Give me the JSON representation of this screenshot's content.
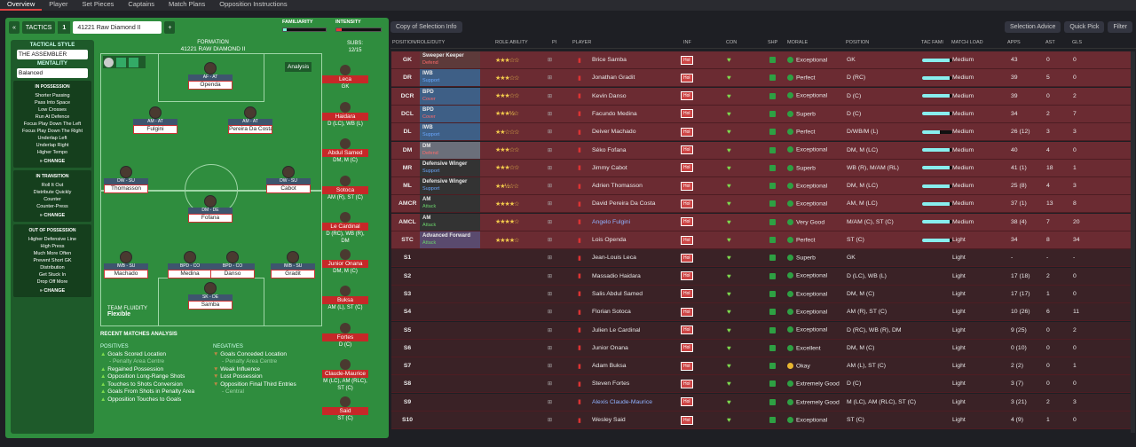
{
  "topnav": [
    "Overview",
    "Player",
    "Set Pieces",
    "Captains",
    "Match Plans",
    "Opposition Instructions"
  ],
  "tactics": {
    "label": "TACTICS",
    "slot": "1",
    "name": "41221 Raw Diamond II",
    "familiarity": "FAMILIARITY",
    "intensity": "INTENSITY",
    "formation_label": "FORMATION",
    "formation": "41221 RAW DIAMOND II",
    "subs_label": "SUBS:",
    "subs_count": "12/15",
    "analysis": "Analysis",
    "fluidity_label": "TEAM FLUIDITY",
    "fluidity": "Flexible"
  },
  "style": {
    "h": "TACTICAL STYLE",
    "name": "THE ASSEMBLER",
    "mentality_h": "MENTALITY",
    "mentality": "Balanced",
    "inpos_h": "IN POSSESSION",
    "inpos": [
      "Shorter Passing",
      "Pass Into Space",
      "Low Crosses",
      "Run At Defence",
      "Focus Play Down The Left",
      "Focus Play Down The Right",
      "Underlap Left",
      "Underlap Right",
      "Higher Tempo"
    ],
    "trans_h": "IN TRANSITION",
    "trans": [
      "Roll It Out",
      "Distribute Quickly",
      "Counter",
      "Counter-Press"
    ],
    "oop_h": "OUT OF POSSESSION",
    "oop": [
      "Higher Defensive Line",
      "High Press",
      "Much More Often",
      "Prevent Short GK",
      "Distribution",
      "Get Stuck In",
      "Drop Off More"
    ],
    "change": "CHANGE"
  },
  "pitch_players": [
    {
      "pos": "AF - AT",
      "name": "Openda"
    },
    {
      "pos": "AM - AT",
      "name": "Fulgini"
    },
    {
      "pos": "AM - AT",
      "name": "Pereira Da Costa"
    },
    {
      "pos": "DW - SU",
      "name": "Thomasson"
    },
    {
      "pos": "DW - SU",
      "name": "Cabot"
    },
    {
      "pos": "DM - DE",
      "name": "Fofana"
    },
    {
      "pos": "IWB - SU",
      "name": "Machado"
    },
    {
      "pos": "BPD - CO",
      "name": "Medina"
    },
    {
      "pos": "BPD - CO",
      "name": "Danso"
    },
    {
      "pos": "IWB - SU",
      "name": "Gradit"
    },
    {
      "pos": "SK - DE",
      "name": "Samba"
    }
  ],
  "subs": [
    {
      "name": "Leca",
      "pos": "GK"
    },
    {
      "name": "Haidara",
      "pos": "D (LC), WB (L)"
    },
    {
      "name": "Abdul Samed",
      "pos": "DM, M (C)"
    },
    {
      "name": "Sotoca",
      "pos": "AM (R), ST (C)"
    },
    {
      "name": "Le Cardinal",
      "pos": "D (RC), WB (R), DM"
    },
    {
      "name": "Junior Onana",
      "pos": "DM, M (C)"
    },
    {
      "name": "Buksa",
      "pos": "AM (L), ST (C)"
    },
    {
      "name": "Fortes",
      "pos": "D (C)"
    },
    {
      "name": "Claude-Maurice",
      "pos": "M (LC), AM (RLC), ST (C)"
    },
    {
      "name": "Said",
      "pos": "ST (C)"
    }
  ],
  "recent": {
    "title": "RECENT MATCHES ANALYSIS",
    "pos_h": "POSITIVES",
    "neg_h": "NEGATIVES",
    "pos": [
      [
        "Goals Scored Location",
        "- Penalty Area Centre"
      ],
      [
        "Regained Possession",
        ""
      ],
      [
        "Opposition Long-Range Shots",
        ""
      ],
      [
        "Touches to Shots Conversion",
        ""
      ],
      [
        "Goals From Shots in Penalty Area",
        ""
      ],
      [
        "Opposition Touches to Goals",
        ""
      ]
    ],
    "neg": [
      [
        "Goals Conceded Location",
        "- Penalty Area Centre"
      ],
      [
        "Weak Influence",
        ""
      ],
      [
        "Lost Possession",
        ""
      ],
      [
        "Opposition Final Third Entries",
        "- Central"
      ]
    ]
  },
  "toolbar": {
    "view": "Copy of Selection Info",
    "advice": "Selection Advice",
    "quick": "Quick Pick",
    "filter": "Filter"
  },
  "headers": [
    "POSITION/ROLE/DUTY",
    "ROLE ABILITY",
    "PI",
    "PLAYER",
    "INF",
    "CON",
    "SHP",
    "MORALE",
    "POSITION",
    "TAC FAMI",
    "MATCH LOAD",
    "APPS",
    "AST",
    "GLS"
  ],
  "rows": [
    {
      "code": "GK",
      "role": "Sweeper Keeper",
      "duty": "Defend",
      "stars": "★★★☆☆",
      "player": "Brice Samba",
      "morale": "Exceptional",
      "position": "GK",
      "tac": 0.9,
      "load": "Medium",
      "apps": "43",
      "ast": "0",
      "gls": "0"
    },
    {
      "code": "DR",
      "role": "IWB",
      "duty": "Support",
      "stars": "★★★☆☆",
      "player": "Jonathan Gradit",
      "morale": "Perfect",
      "position": "D (RC)",
      "tac": 0.9,
      "load": "Medium",
      "apps": "39",
      "ast": "5",
      "gls": "0"
    },
    {
      "code": "DCR",
      "role": "BPD",
      "duty": "Cover",
      "stars": "★★★☆☆",
      "player": "Kevin Danso",
      "morale": "Exceptional",
      "position": "D (C)",
      "tac": 0.9,
      "load": "Medium",
      "apps": "39",
      "ast": "0",
      "gls": "2"
    },
    {
      "code": "DCL",
      "role": "BPD",
      "duty": "Cover",
      "stars": "★★★½☆",
      "player": "Facundo Medina",
      "morale": "Superb",
      "position": "D (C)",
      "tac": 0.9,
      "load": "Medium",
      "apps": "34",
      "ast": "2",
      "gls": "7"
    },
    {
      "code": "DL",
      "role": "IWB",
      "duty": "Support",
      "stars": "★★☆☆☆",
      "player": "Deiver Machado",
      "morale": "Perfect",
      "position": "D/WB/M (L)",
      "tac": 0.6,
      "load": "Medium",
      "apps": "26 (12)",
      "ast": "3",
      "gls": "3"
    },
    {
      "code": "DM",
      "role": "DM",
      "duty": "Defend",
      "stars": "★★★☆☆",
      "player": "Séko Fofana",
      "morale": "Exceptional",
      "position": "DM, M (LC)",
      "tac": 0.9,
      "load": "Medium",
      "apps": "40",
      "ast": "4",
      "gls": "0"
    },
    {
      "code": "MR",
      "role": "Defensive Winger",
      "duty": "Support",
      "stars": "★★★☆☆",
      "player": "Jimmy Cabot",
      "morale": "Superb",
      "position": "WB (R), M/AM (RL)",
      "tac": 0.9,
      "load": "Medium",
      "apps": "41 (1)",
      "ast": "18",
      "gls": "1"
    },
    {
      "code": "ML",
      "role": "Defensive Winger",
      "duty": "Support",
      "stars": "★★½☆☆",
      "player": "Adrien Thomasson",
      "morale": "Exceptional",
      "position": "DM, M (LC)",
      "tac": 0.9,
      "load": "Medium",
      "apps": "25 (8)",
      "ast": "4",
      "gls": "3"
    },
    {
      "code": "AMCR",
      "role": "AM",
      "duty": "Attack",
      "stars": "★★★★☆",
      "player": "David Pereira Da Costa",
      "morale": "Exceptional",
      "position": "AM, M (LC)",
      "tac": 0.9,
      "load": "Medium",
      "apps": "37 (1)",
      "ast": "13",
      "gls": "8"
    },
    {
      "code": "AMCL",
      "role": "AM",
      "duty": "Attack",
      "stars": "★★★★☆",
      "player": "Angelo Fulgini",
      "morale": "Very Good",
      "position": "M/AM (C), ST (C)",
      "tac": 0.9,
      "load": "Medium",
      "apps": "38 (4)",
      "ast": "7",
      "gls": "20"
    },
    {
      "code": "STC",
      "role": "Advanced Forward",
      "duty": "Attack",
      "stars": "★★★★☆",
      "player": "Lois Openda",
      "morale": "Perfect",
      "position": "ST (C)",
      "tac": 0.9,
      "load": "Light",
      "apps": "34",
      "ast": "8",
      "gls": "34"
    },
    {
      "code": "S1",
      "player": "Jean-Louis Leca",
      "morale": "Superb",
      "position": "GK",
      "load": "Light",
      "apps": "-",
      "ast": "-",
      "gls": "-"
    },
    {
      "code": "S2",
      "player": "Massadio Haidara",
      "morale": "Exceptional",
      "position": "D (LC), WB (L)",
      "load": "Light",
      "apps": "17 (18)",
      "ast": "2",
      "gls": "0"
    },
    {
      "code": "S3",
      "player": "Salis Abdul Samed",
      "morale": "Exceptional",
      "position": "DM, M (C)",
      "load": "Light",
      "apps": "17 (17)",
      "ast": "1",
      "gls": "0"
    },
    {
      "code": "S4",
      "player": "Florian Sotoca",
      "morale": "Exceptional",
      "position": "AM (R), ST (C)",
      "load": "Light",
      "apps": "10 (26)",
      "ast": "6",
      "gls": "11"
    },
    {
      "code": "S5",
      "player": "Julien Le Cardinal",
      "morale": "Exceptional",
      "position": "D (RC), WB (R), DM",
      "load": "Light",
      "apps": "9 (25)",
      "ast": "0",
      "gls": "2"
    },
    {
      "code": "S6",
      "player": "Junior Onana",
      "morale": "Excellent",
      "position": "DM, M (C)",
      "load": "Light",
      "apps": "0 (10)",
      "ast": "0",
      "gls": "0"
    },
    {
      "code": "S7",
      "player": "Adam Buksa",
      "morale": "Okay",
      "position": "AM (L), ST (C)",
      "load": "Light",
      "apps": "2 (2)",
      "ast": "0",
      "gls": "1"
    },
    {
      "code": "S8",
      "player": "Steven Fortes",
      "morale": "Extremely Good",
      "position": "D (C)",
      "load": "Light",
      "apps": "3 (7)",
      "ast": "0",
      "gls": "0"
    },
    {
      "code": "S9",
      "player": "Alexis Claude-Maurice",
      "morale": "Extremely Good",
      "position": "M (LC), AM (RLC), ST (C)",
      "load": "Light",
      "apps": "3 (21)",
      "ast": "2",
      "gls": "3"
    },
    {
      "code": "S10",
      "player": "Wesley Said",
      "morale": "Exceptional",
      "position": "ST (C)",
      "load": "Light",
      "apps": "4 (9)",
      "ast": "1",
      "gls": "0"
    }
  ],
  "colors": {
    "accent": "#c62828",
    "pitch": "#2f8d3e",
    "row": "#6b2b32"
  }
}
